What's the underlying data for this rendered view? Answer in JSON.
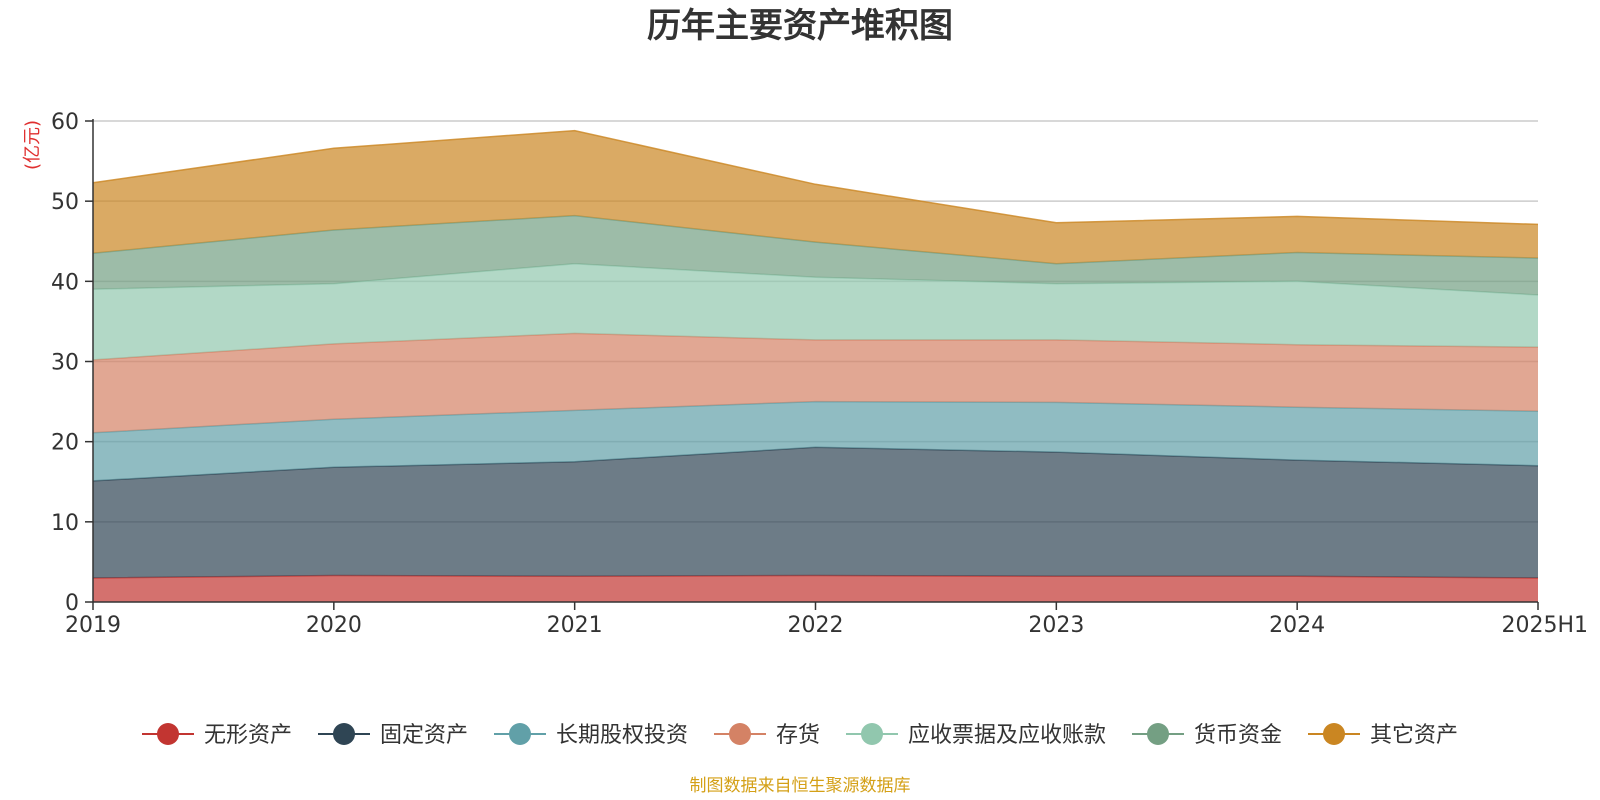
{
  "chart_data": {
    "type": "area",
    "stacked": true,
    "title": "历年主要资产堆积图",
    "ylabel": "(亿元)",
    "xlabel": "",
    "ylim": [
      0,
      60
    ],
    "yticks": [
      0,
      10,
      20,
      30,
      40,
      50,
      60
    ],
    "grid": true,
    "legend_position": "bottom",
    "categories": [
      "2019",
      "2020",
      "2021",
      "2022",
      "2023",
      "2024",
      "2025H1"
    ],
    "series": [
      {
        "name": "无形资产",
        "color": "#c23531",
        "values": [
          3.0,
          3.3,
          3.2,
          3.3,
          3.2,
          3.2,
          3.0
        ]
      },
      {
        "name": "固定资产",
        "color": "#2f4554",
        "values": [
          12.1,
          13.5,
          14.3,
          16.0,
          15.5,
          14.5,
          14.0
        ]
      },
      {
        "name": "长期股权投资",
        "color": "#61a0a8",
        "values": [
          6.0,
          6.0,
          6.4,
          5.7,
          6.2,
          6.6,
          6.8
        ]
      },
      {
        "name": "存货",
        "color": "#d48265",
        "values": [
          9.1,
          9.4,
          9.6,
          7.7,
          7.8,
          7.8,
          8.0
        ]
      },
      {
        "name": "应收票据及应收账款",
        "color": "#91c7ae",
        "values": [
          8.8,
          7.5,
          8.7,
          7.8,
          7.0,
          7.9,
          6.5
        ]
      },
      {
        "name": "货币资金",
        "color": "#749f83",
        "values": [
          4.5,
          6.7,
          6.0,
          4.4,
          2.5,
          3.6,
          4.6
        ]
      },
      {
        "name": "其它资产",
        "color": "#ca8622",
        "values": [
          8.8,
          10.2,
          10.6,
          7.2,
          5.1,
          4.5,
          4.2
        ]
      }
    ]
  },
  "source_text": "制图数据来自恒生聚源数据库"
}
